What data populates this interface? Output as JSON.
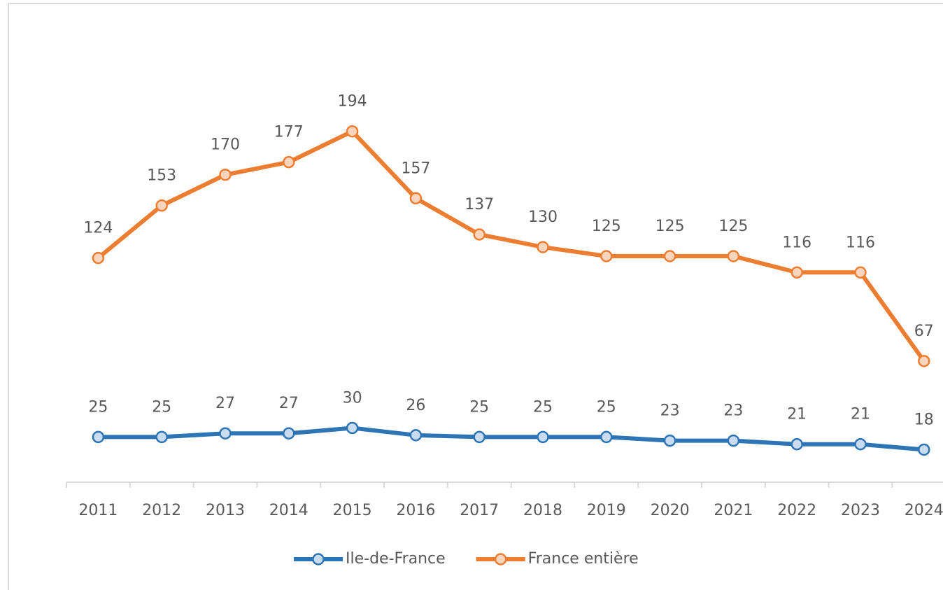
{
  "chart_data": {
    "type": "line",
    "categories": [
      "2011",
      "2012",
      "2013",
      "2014",
      "2015",
      "2016",
      "2017",
      "2018",
      "2019",
      "2020",
      "2021",
      "2022",
      "2023",
      "2024"
    ],
    "series": [
      {
        "name": "Ile-de-France",
        "color": "#2e75b6",
        "marker_fill": "#c9dcf0",
        "values": [
          25,
          25,
          27,
          27,
          30,
          26,
          25,
          25,
          25,
          23,
          23,
          21,
          21,
          18
        ]
      },
      {
        "name": "France entière",
        "color": "#ed7d31",
        "marker_fill": "#fbd6bf",
        "values": [
          124,
          153,
          170,
          177,
          194,
          157,
          137,
          130,
          125,
          125,
          125,
          116,
          116,
          67
        ]
      }
    ],
    "ylim": [
      0,
      250
    ]
  }
}
